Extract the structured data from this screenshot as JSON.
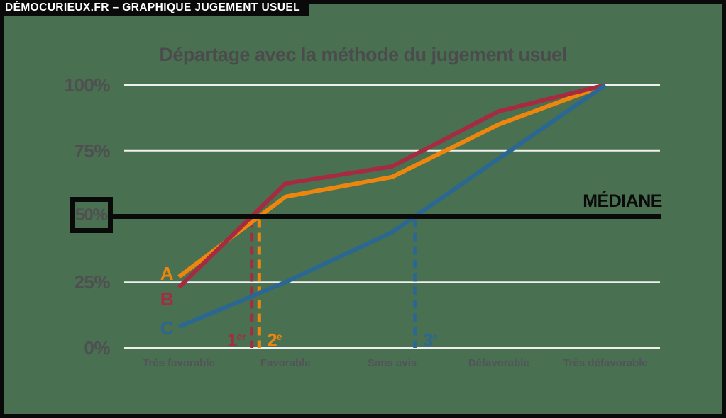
{
  "page": {
    "background": "#497050",
    "border_color": "#0a0a0a"
  },
  "header": {
    "title": "DÉMOCURIEUX.FR – GRAPHIQUE JUGEMENT USUEL",
    "bg": "#0a0a0a",
    "text_color": "#ffffff"
  },
  "chart_data": {
    "type": "line",
    "title": "Départage avec la méthode du jugement usuel",
    "categories": [
      "Très favorable",
      "Favorable",
      "Sans avis",
      "Défavorable",
      "Très défavorable"
    ],
    "series": [
      {
        "name": "A",
        "color": "#ee860d",
        "values": [
          27,
          57.5,
          65,
          85,
          100
        ],
        "rank": {
          "num": "2",
          "sup": "e",
          "side": "right"
        }
      },
      {
        "name": "B",
        "color": "#a62b40",
        "values": [
          23,
          62.5,
          69,
          90,
          100
        ],
        "rank": {
          "num": "1",
          "sup": "er",
          "side": "left"
        }
      },
      {
        "name": "C",
        "color": "#2a6793",
        "values": [
          8,
          25,
          44,
          72,
          100
        ],
        "rank": {
          "num": "3",
          "sup": "e",
          "side": "right"
        }
      }
    ],
    "y_ticks": [
      {
        "label": "100%",
        "value": 100
      },
      {
        "label": "75%",
        "value": 75
      },
      {
        "label": "50%",
        "value": 50,
        "boxed": true
      },
      {
        "label": "25%",
        "value": 25
      },
      {
        "label": "0%",
        "value": 0
      }
    ],
    "ylim": [
      0,
      100
    ],
    "grid": true,
    "gridline_color": "#efefef",
    "median": {
      "label": "MÉDIANE",
      "value": 50,
      "color": "#0a0a0a"
    },
    "legend_position": "left-of-first-points",
    "notes": "cumulative merit profile; dashed verticals mark where each curve crosses the median (50%)"
  }
}
